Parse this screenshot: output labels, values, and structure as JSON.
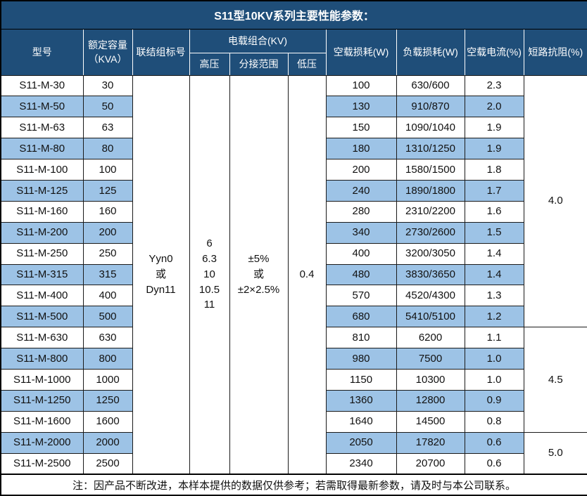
{
  "title": "S11型10KV系列主要性能参数：",
  "colors": {
    "header_bg": "#1F4E79",
    "header_text": "#FFFFFF",
    "alt_row_bg": "#9DC3E6",
    "row_bg": "#FFFFFF",
    "body_text": "#111111",
    "grid": "#1A1A1A",
    "header_grid": "#FFFFFF"
  },
  "table": {
    "headers": {
      "model": "型号",
      "capacity": "额定容量\n（KVA）",
      "connection": "联结组标号",
      "voltage_group": "电载组合(KV)",
      "hv": "高压",
      "tap_range": "分接范围",
      "lv": "低压",
      "no_load_loss": "空载损耗(W)",
      "load_loss": "负载损耗(W)",
      "no_load_current": "空载电流(%)",
      "impedance": "短路抗阻(%)"
    },
    "merged": {
      "connection": "Yyn0\n或\nDyn11",
      "hv": "6\n6.3\n10\n10.5\n11",
      "tap_range": "±5%\n或\n±2×2.5%",
      "lv": "0.4"
    },
    "impedance_groups": [
      {
        "value": "4.0",
        "span": 12
      },
      {
        "value": "4.5",
        "span": 5
      },
      {
        "value": "5.0",
        "span": 2
      }
    ],
    "rows": [
      {
        "model": "S11-M-30",
        "capacity": "30",
        "no_load_loss": "100",
        "load_loss": "630/600",
        "no_load_current": "2.3"
      },
      {
        "model": "S11-M-50",
        "capacity": "50",
        "no_load_loss": "130",
        "load_loss": "910/870",
        "no_load_current": "2.0"
      },
      {
        "model": "S11-M-63",
        "capacity": "63",
        "no_load_loss": "150",
        "load_loss": "1090/1040",
        "no_load_current": "1.9"
      },
      {
        "model": "S11-M-80",
        "capacity": "80",
        "no_load_loss": "180",
        "load_loss": "1310/1250",
        "no_load_current": "1.9"
      },
      {
        "model": "S11-M-100",
        "capacity": "100",
        "no_load_loss": "200",
        "load_loss": "1580/1500",
        "no_load_current": "1.8"
      },
      {
        "model": "S11-M-125",
        "capacity": "125",
        "no_load_loss": "240",
        "load_loss": "1890/1800",
        "no_load_current": "1.7"
      },
      {
        "model": "S11-M-160",
        "capacity": "160",
        "no_load_loss": "280",
        "load_loss": "2310/2200",
        "no_load_current": "1.6"
      },
      {
        "model": "S11-M-200",
        "capacity": "200",
        "no_load_loss": "340",
        "load_loss": "2730/2600",
        "no_load_current": "1.5"
      },
      {
        "model": "S11-M-250",
        "capacity": "250",
        "no_load_loss": "400",
        "load_loss": "3200/3050",
        "no_load_current": "1.4"
      },
      {
        "model": "S11-M-315",
        "capacity": "315",
        "no_load_loss": "480",
        "load_loss": "3830/3650",
        "no_load_current": "1.4"
      },
      {
        "model": "S11-M-400",
        "capacity": "400",
        "no_load_loss": "570",
        "load_loss": "4520/4300",
        "no_load_current": "1.3"
      },
      {
        "model": "S11-M-500",
        "capacity": "500",
        "no_load_loss": "680",
        "load_loss": "5410/5100",
        "no_load_current": "1.2"
      },
      {
        "model": "S11-M-630",
        "capacity": "630",
        "no_load_loss": "810",
        "load_loss": "6200",
        "no_load_current": "1.1"
      },
      {
        "model": "S11-M-800",
        "capacity": "800",
        "no_load_loss": "980",
        "load_loss": "7500",
        "no_load_current": "1.0"
      },
      {
        "model": "S11-M-1000",
        "capacity": "1000",
        "no_load_loss": "1150",
        "load_loss": "10300",
        "no_load_current": "1.0"
      },
      {
        "model": "S11-M-1250",
        "capacity": "1250",
        "no_load_loss": "1360",
        "load_loss": "12800",
        "no_load_current": "0.9"
      },
      {
        "model": "S11-M-1600",
        "capacity": "1600",
        "no_load_loss": "1640",
        "load_loss": "14500",
        "no_load_current": "0.8"
      },
      {
        "model": "S11-M-2000",
        "capacity": "2000",
        "no_load_loss": "2050",
        "load_loss": "17820",
        "no_load_current": "0.6"
      },
      {
        "model": "S11-M-2500",
        "capacity": "2500",
        "no_load_loss": "2340",
        "load_loss": "20700",
        "no_load_current": "0.6"
      }
    ]
  },
  "footer_note": "注：因产品不断改进，本样本提供的数据仅供参考；若需取得最新参数，请及时与本公司联系。"
}
